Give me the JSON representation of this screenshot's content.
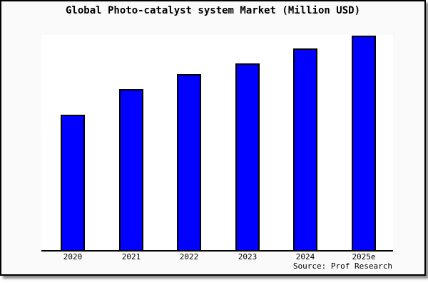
{
  "chart": {
    "title": "Global Photo-catalyst system Market (Million USD)",
    "source_note": "Source: Prof Research",
    "colors": {
      "bar_fill": "#0000ff",
      "bar_border": "#000000",
      "plot_background": "#ffffff",
      "canvas_background": "#fafafa",
      "frame_border": "#000000",
      "axis": "#000000",
      "text": "#000000"
    }
  },
  "chart_data": {
    "type": "bar",
    "title": "Global Photo-catalyst system Market (Million USD)",
    "categories": [
      "2020",
      "2021",
      "2022",
      "2023",
      "2024",
      "2025e"
    ],
    "values": [
      63,
      75,
      82,
      87,
      94,
      100
    ],
    "value_scale": "relative index estimated from bar heights; y-axis has no tick labels; 2025e = 100",
    "xlabel": "",
    "ylabel": "",
    "ylim": [
      0,
      100
    ],
    "grid": false,
    "legend": false,
    "annotations": [
      "Source: Prof Research"
    ]
  }
}
